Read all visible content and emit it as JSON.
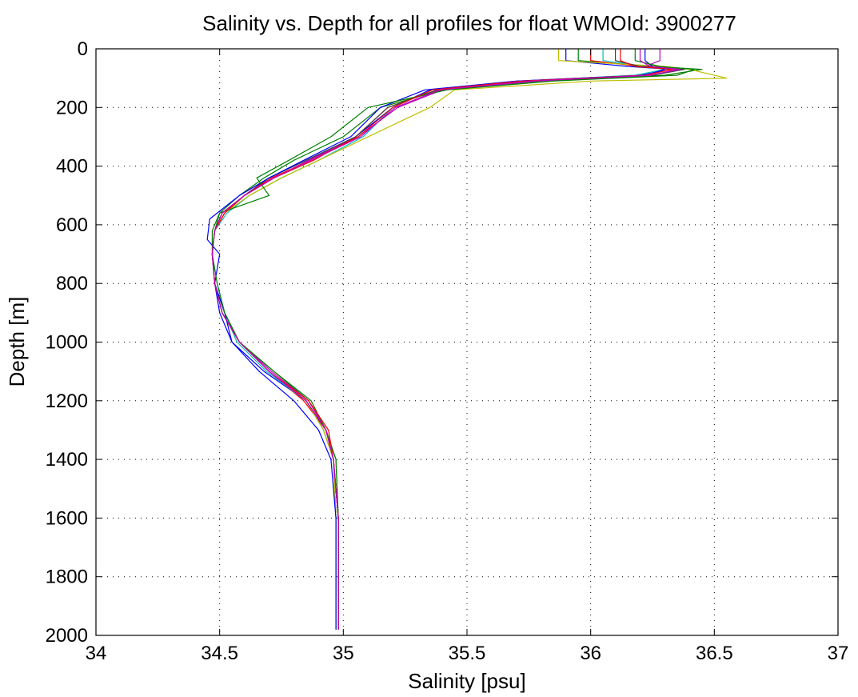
{
  "chart_data": {
    "type": "line",
    "title": "Salinity vs. Depth for all profiles for float WMOId: 3900277",
    "xlabel": "Salinity [psu]",
    "ylabel": "Depth [m]",
    "xlim": [
      34,
      37
    ],
    "ylim": [
      0,
      2000
    ],
    "y_inverted": true,
    "grid": true,
    "xticks": [
      34,
      34.5,
      35,
      35.5,
      36,
      36.5,
      37
    ],
    "xtick_labels": [
      "34",
      "34.5",
      "35",
      "35.5",
      "36",
      "36.5",
      "37"
    ],
    "yticks": [
      0,
      200,
      400,
      600,
      800,
      1000,
      1200,
      1400,
      1600,
      1800,
      2000
    ],
    "ytick_labels": [
      "0",
      "200",
      "400",
      "600",
      "800",
      "1000",
      "1200",
      "1400",
      "1600",
      "1800",
      "2000"
    ],
    "series": [
      {
        "color": "#0000ff",
        "x": [
          35.9,
          35.9,
          36.15,
          36.33,
          36.2,
          35.7,
          35.35,
          35.2,
          35.05,
          34.85,
          34.7,
          34.6,
          34.52,
          34.48,
          34.47,
          34.48,
          34.5,
          34.55,
          34.68,
          34.85,
          34.92,
          34.96,
          34.97,
          34.97,
          34.97
        ],
        "y": [
          0,
          40,
          60,
          70,
          90,
          110,
          140,
          200,
          300,
          380,
          440,
          500,
          560,
          620,
          700,
          800,
          900,
          1000,
          1100,
          1200,
          1300,
          1400,
          1600,
          1800,
          1980
        ]
      },
      {
        "color": "#008000",
        "x": [
          35.95,
          35.95,
          36.25,
          36.45,
          36.3,
          35.8,
          35.4,
          35.15,
          35.0,
          34.8,
          34.68,
          34.58,
          34.5,
          34.47,
          34.47,
          34.48,
          34.52,
          34.58,
          34.72,
          34.86,
          34.93,
          34.97,
          34.98,
          34.98,
          34.98
        ],
        "y": [
          0,
          40,
          60,
          70,
          90,
          110,
          140,
          200,
          300,
          380,
          440,
          500,
          560,
          620,
          700,
          800,
          900,
          1000,
          1100,
          1200,
          1300,
          1400,
          1600,
          1800,
          1980
        ]
      },
      {
        "color": "#ff0000",
        "x": [
          36.0,
          36.0,
          36.2,
          36.35,
          36.25,
          35.75,
          35.38,
          35.18,
          35.05,
          34.88,
          34.72,
          34.6,
          34.52,
          34.48,
          34.47,
          34.48,
          34.51,
          34.58,
          34.7,
          34.84,
          34.93,
          34.96,
          34.98,
          34.98,
          34.98
        ],
        "y": [
          0,
          40,
          60,
          70,
          90,
          110,
          140,
          200,
          300,
          380,
          440,
          500,
          560,
          620,
          700,
          800,
          900,
          1000,
          1100,
          1200,
          1300,
          1400,
          1600,
          1800,
          1980
        ]
      },
      {
        "color": "#00bfbf",
        "x": [
          36.05,
          36.05,
          36.22,
          36.3,
          36.18,
          35.72,
          35.36,
          35.2,
          35.08,
          34.9,
          34.75,
          34.62,
          34.53,
          34.48,
          34.47,
          34.49,
          34.52,
          34.57,
          34.69,
          34.85,
          34.92,
          34.96,
          34.97,
          34.97,
          34.97
        ],
        "y": [
          0,
          40,
          60,
          70,
          90,
          110,
          140,
          200,
          300,
          380,
          440,
          500,
          560,
          620,
          700,
          800,
          900,
          1000,
          1100,
          1200,
          1300,
          1400,
          1600,
          1800,
          1980
        ]
      },
      {
        "color": "#bf00bf",
        "x": [
          36.28,
          36.28,
          36.22,
          36.35,
          36.25,
          35.78,
          35.4,
          35.22,
          35.06,
          34.86,
          34.72,
          34.6,
          34.51,
          34.48,
          34.47,
          34.48,
          34.51,
          34.58,
          34.71,
          34.86,
          34.93,
          34.96,
          34.98,
          34.98,
          34.98
        ],
        "y": [
          0,
          40,
          60,
          70,
          90,
          110,
          140,
          200,
          300,
          380,
          440,
          500,
          560,
          620,
          700,
          800,
          900,
          1000,
          1100,
          1200,
          1300,
          1400,
          1600,
          1800,
          1980
        ]
      },
      {
        "color": "#bfbf00",
        "x": [
          35.87,
          35.87,
          36.3,
          36.4,
          36.55,
          36.0,
          35.45,
          35.35,
          35.1,
          34.9,
          34.75,
          34.62,
          34.52,
          34.48,
          34.47,
          34.48,
          34.51,
          34.58,
          34.7,
          34.85,
          34.92,
          34.96,
          34.97,
          34.97,
          34.97
        ],
        "y": [
          0,
          40,
          60,
          70,
          100,
          110,
          140,
          200,
          300,
          380,
          440,
          500,
          560,
          620,
          700,
          800,
          900,
          1000,
          1100,
          1200,
          1300,
          1400,
          1600,
          1800,
          1980
        ]
      },
      {
        "color": "#404040",
        "x": [
          36.1,
          36.1,
          36.2,
          36.38,
          36.25,
          35.75,
          35.38,
          35.18,
          35.05,
          34.85,
          34.7,
          34.6,
          34.51,
          34.48,
          34.47,
          34.48,
          34.51,
          34.58,
          34.7,
          34.85,
          34.93,
          34.96,
          34.98,
          34.98,
          34.98
        ],
        "y": [
          0,
          40,
          60,
          70,
          90,
          110,
          140,
          200,
          300,
          380,
          440,
          500,
          560,
          620,
          700,
          800,
          900,
          1000,
          1100,
          1200,
          1300,
          1400,
          1600,
          1800,
          1980
        ]
      },
      {
        "color": "#0000ff",
        "x": [
          36.22,
          36.22,
          36.25,
          36.3,
          36.22,
          35.7,
          35.33,
          35.15,
          35.03,
          34.84,
          34.7,
          34.58,
          34.46,
          34.45,
          34.5,
          34.48,
          34.52,
          34.55,
          34.66,
          34.8,
          34.9,
          34.95,
          34.97,
          34.97,
          34.97
        ],
        "y": [
          0,
          40,
          60,
          70,
          90,
          110,
          140,
          200,
          300,
          380,
          440,
          500,
          580,
          650,
          700,
          800,
          900,
          1000,
          1100,
          1200,
          1300,
          1400,
          1600,
          1800,
          1980
        ]
      },
      {
        "color": "#008000",
        "x": [
          36.18,
          36.18,
          36.28,
          36.42,
          36.35,
          35.85,
          35.42,
          35.1,
          34.95,
          34.78,
          34.65,
          34.7,
          34.5,
          34.48,
          34.47,
          34.49,
          34.52,
          34.58,
          34.72,
          34.87,
          34.93,
          34.97,
          34.98,
          34.98,
          34.98
        ],
        "y": [
          0,
          40,
          60,
          70,
          90,
          110,
          140,
          200,
          300,
          380,
          440,
          500,
          560,
          620,
          700,
          800,
          900,
          1000,
          1100,
          1200,
          1300,
          1400,
          1600,
          1800,
          1980
        ]
      },
      {
        "color": "#ff0000",
        "x": [
          36.12,
          36.12,
          36.18,
          36.33,
          36.22,
          35.72,
          35.36,
          35.2,
          35.06,
          34.87,
          34.71,
          34.6,
          34.52,
          34.48,
          34.47,
          34.48,
          34.51,
          34.58,
          34.7,
          34.86,
          34.94,
          34.96,
          34.98,
          34.98,
          34.98
        ],
        "y": [
          0,
          40,
          60,
          70,
          90,
          110,
          140,
          200,
          300,
          380,
          440,
          500,
          560,
          620,
          700,
          800,
          900,
          1000,
          1100,
          1200,
          1300,
          1400,
          1600,
          1800,
          1980
        ]
      },
      {
        "color": "#bf00bf",
        "x": [
          36.2,
          36.2,
          36.24,
          36.36,
          36.24,
          35.76,
          35.39,
          35.21,
          35.07,
          34.87,
          34.72,
          34.6,
          34.51,
          34.48,
          34.47,
          34.48,
          34.51,
          34.58,
          34.7,
          34.85,
          34.93,
          34.96,
          34.98,
          34.98,
          34.98
        ],
        "y": [
          0,
          40,
          60,
          70,
          90,
          110,
          140,
          200,
          300,
          380,
          440,
          500,
          560,
          620,
          700,
          800,
          900,
          1000,
          1100,
          1200,
          1300,
          1400,
          1600,
          1800,
          1980
        ]
      }
    ]
  }
}
